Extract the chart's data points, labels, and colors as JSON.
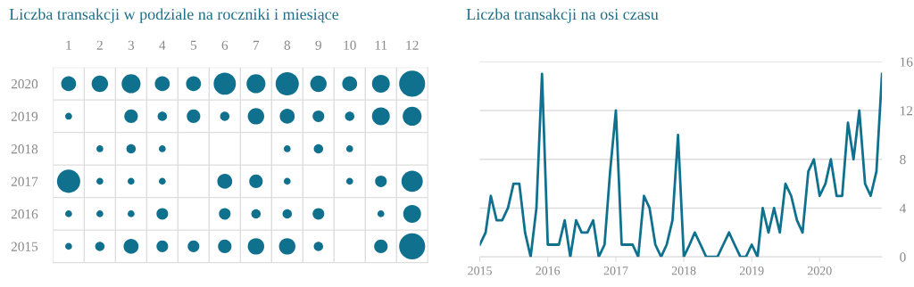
{
  "chart_data": [
    {
      "type": "bubble",
      "title": "Liczba transakcji w podziale na roczniki i miesiące",
      "x": [
        1,
        2,
        3,
        4,
        5,
        6,
        7,
        8,
        9,
        10,
        11,
        12
      ],
      "xlim": [
        0.5,
        12.5
      ],
      "xticks": [
        1,
        2,
        3,
        4,
        5,
        6,
        7,
        8,
        9,
        10,
        11,
        12
      ],
      "ylim": [
        2014.5,
        2020.5
      ],
      "yticks": [
        2015,
        2016,
        2017,
        2018,
        2019,
        2020
      ],
      "grid": true,
      "color": "#10718e",
      "series": [
        {
          "values": [
            2020,
            2020,
            2020,
            2020,
            2020,
            2020,
            2020,
            2020,
            2020,
            2020,
            2020,
            2020
          ],
          "sizes": [
            0.33,
            0.4,
            0.53,
            0.33,
            0.33,
            0.73,
            0.53,
            0.8,
            0.4,
            0.33,
            0.47,
            1
          ]
        },
        {
          "values": [
            2019,
            null,
            2019,
            2019,
            2019,
            2019,
            2019,
            2019,
            2019,
            2019,
            2019,
            2019
          ],
          "sizes": [
            0.07,
            null,
            0.27,
            0.13,
            0.27,
            0.13,
            0.4,
            0.33,
            0.2,
            0.13,
            0.47,
            0.53
          ]
        },
        {
          "values": [
            null,
            2018,
            2018,
            2018,
            null,
            null,
            null,
            2018,
            2018,
            2018,
            null,
            null
          ],
          "sizes": [
            null,
            0.07,
            0.13,
            0.07,
            null,
            null,
            null,
            0.07,
            0.13,
            0.07,
            null,
            null
          ]
        },
        {
          "values": [
            2017,
            2017,
            2017,
            2017,
            null,
            2017,
            2017,
            2017,
            null,
            2017,
            2017,
            2017
          ],
          "sizes": [
            0.8,
            0.07,
            0.07,
            0.07,
            null,
            0.33,
            0.27,
            0.07,
            null,
            0.07,
            0.2,
            0.67
          ]
        },
        {
          "values": [
            2016,
            2016,
            2016,
            2016,
            null,
            2016,
            2016,
            2016,
            2016,
            null,
            2016,
            2016
          ],
          "sizes": [
            0.07,
            0.07,
            0.07,
            0.2,
            null,
            0.2,
            0.13,
            0.13,
            0.2,
            null,
            0.07,
            0.47
          ]
        },
        {
          "values": [
            2015,
            2015,
            2015,
            2015,
            2015,
            2015,
            2015,
            2015,
            2015,
            null,
            2015,
            2015
          ],
          "sizes": [
            0.07,
            0.13,
            0.33,
            0.2,
            0.2,
            0.27,
            0.4,
            0.4,
            0.13,
            null,
            0.27,
            1
          ]
        }
      ]
    },
    {
      "type": "line",
      "title": "Liczba transakcji na osi czasu",
      "color": "#10718e",
      "grid": "y",
      "ylim": [
        0,
        16
      ],
      "yticks": [
        0,
        4,
        8,
        12,
        16
      ],
      "xlim": [
        "2015-01",
        "2020-12"
      ],
      "xticks": [
        {
          "value": "2015-01",
          "label": "2015"
        },
        {
          "value": "2016-01",
          "label": "2016"
        },
        {
          "value": "2017-01",
          "label": "2017"
        },
        {
          "value": "2018-01",
          "label": "2018"
        },
        {
          "value": "2019-01",
          "label": "2019"
        },
        {
          "value": "2020-01",
          "label": "2020"
        }
      ],
      "x": [
        "2015-01",
        "2015-02",
        "2015-03",
        "2015-04",
        "2015-05",
        "2015-06",
        "2015-07",
        "2015-08",
        "2015-09",
        "2015-10",
        "2015-11",
        "2015-12",
        "2016-01",
        "2016-02",
        "2016-03",
        "2016-04",
        "2016-05",
        "2016-06",
        "2016-07",
        "2016-08",
        "2016-09",
        "2016-10",
        "2016-11",
        "2016-12",
        "2017-01",
        "2017-02",
        "2017-03",
        "2017-04",
        "2017-05",
        "2017-06",
        "2017-07",
        "2017-08",
        "2017-09",
        "2017-10",
        "2017-11",
        "2017-12",
        "2018-01",
        "2018-02",
        "2018-03",
        "2018-04",
        "2018-05",
        "2018-06",
        "2018-07",
        "2018-08",
        "2018-09",
        "2018-10",
        "2018-11",
        "2018-12",
        "2019-01",
        "2019-02",
        "2019-03",
        "2019-04",
        "2019-05",
        "2019-06",
        "2019-07",
        "2019-08",
        "2019-09",
        "2019-10",
        "2019-11",
        "2019-12",
        "2020-01",
        "2020-02",
        "2020-03",
        "2020-04",
        "2020-05",
        "2020-06",
        "2020-07",
        "2020-08",
        "2020-09",
        "2020-10",
        "2020-11",
        "2020-12"
      ],
      "values": [
        1,
        2,
        5,
        3,
        3,
        4,
        6,
        6,
        2,
        0,
        4,
        15,
        1,
        1,
        1,
        3,
        0,
        3,
        2,
        2,
        3,
        0,
        1,
        7,
        12,
        1,
        1,
        1,
        0,
        5,
        4,
        1,
        0,
        1,
        3,
        10,
        0,
        1,
        2,
        1,
        0,
        0,
        0,
        1,
        2,
        1,
        0,
        0,
        1,
        0,
        4,
        2,
        4,
        2,
        6,
        5,
        3,
        2,
        7,
        8,
        5,
        6,
        8,
        5,
        5,
        11,
        8,
        12,
        6,
        5,
        7,
        15
      ]
    }
  ]
}
